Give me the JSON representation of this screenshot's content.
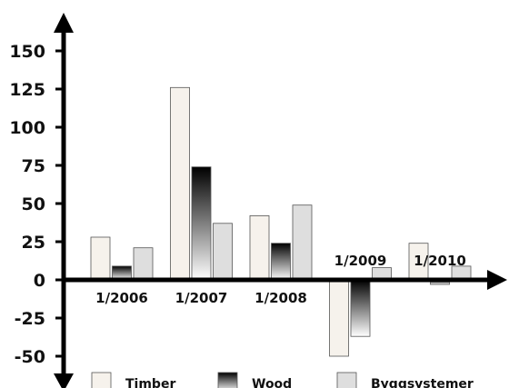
{
  "chart_data": {
    "type": "bar",
    "title": "",
    "xlabel": "",
    "ylabel": "",
    "categories": [
      "1/2006",
      "1/2007",
      "1/2008",
      "1/2009",
      "1/2010"
    ],
    "series": [
      {
        "name": "Timber",
        "values": [
          28,
          126,
          42,
          -50,
          24
        ]
      },
      {
        "name": "Wood",
        "values": [
          9,
          74,
          24,
          -37,
          -3
        ]
      },
      {
        "name": "Byggsystemer",
        "values": [
          21,
          37,
          49,
          8,
          9
        ]
      }
    ],
    "ylim": [
      -50,
      150
    ],
    "yticks": [
      150,
      125,
      100,
      75,
      50,
      25,
      0,
      -25,
      -50
    ],
    "grid": false,
    "legend": "bottom",
    "colors": {
      "Timber": "#f6f2ec",
      "Wood_top": "#000000",
      "Wood_bottom": "#ffffff",
      "Byggsystemer": "#dedede",
      "axis": "#000000"
    }
  }
}
